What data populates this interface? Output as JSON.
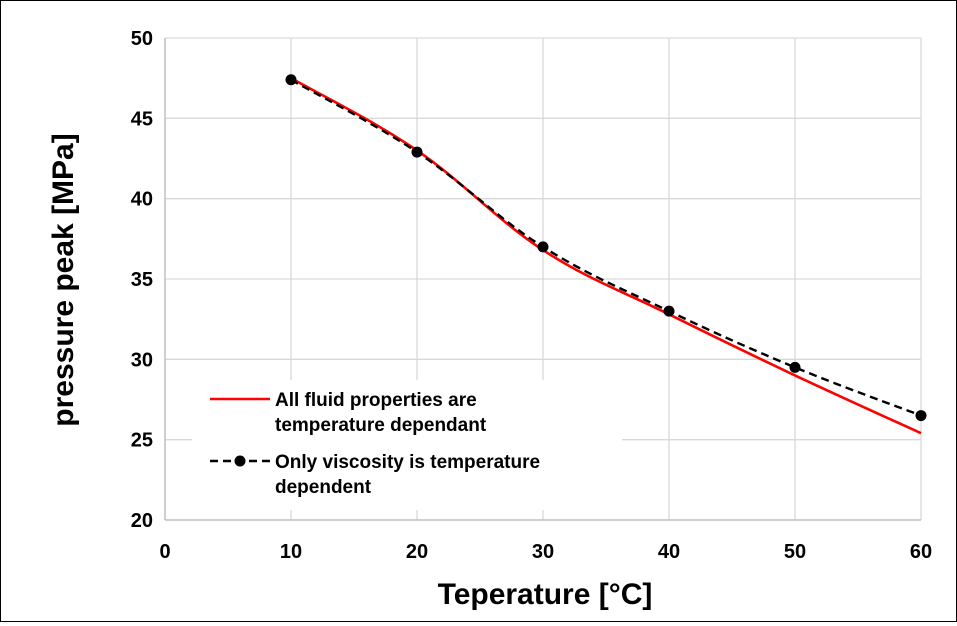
{
  "chart_data": {
    "type": "line",
    "title": "",
    "xlabel": "Teperature [°C]",
    "ylabel": "pressure peak [MPa]",
    "xlim": [
      0,
      60
    ],
    "ylim": [
      20,
      50
    ],
    "xticks": [
      "0",
      "10",
      "20",
      "30",
      "40",
      "50",
      "60"
    ],
    "yticks": [
      "20",
      "25",
      "30",
      "35",
      "40",
      "45",
      "50"
    ],
    "grid": "on",
    "legend_position": "bottom-left",
    "series": [
      {
        "name": "All fluid properties are temperature dependant",
        "legend_lines": [
          "All fluid properties are",
          "temperature dependant"
        ],
        "style": "solid",
        "color": "#ff0000",
        "markers": false,
        "x": [
          10,
          20,
          30,
          40,
          50,
          60
        ],
        "y": [
          47.5,
          43.0,
          36.8,
          32.8,
          29.0,
          25.4
        ]
      },
      {
        "name": "Only viscosity is temperature dependent",
        "legend_lines": [
          "Only viscosity is temperature",
          "dependent"
        ],
        "style": "dashed",
        "color": "#000000",
        "markers": true,
        "x": [
          10,
          20,
          30,
          40,
          50,
          60
        ],
        "y": [
          47.4,
          42.9,
          37.0,
          33.0,
          29.5,
          26.5
        ]
      }
    ]
  }
}
